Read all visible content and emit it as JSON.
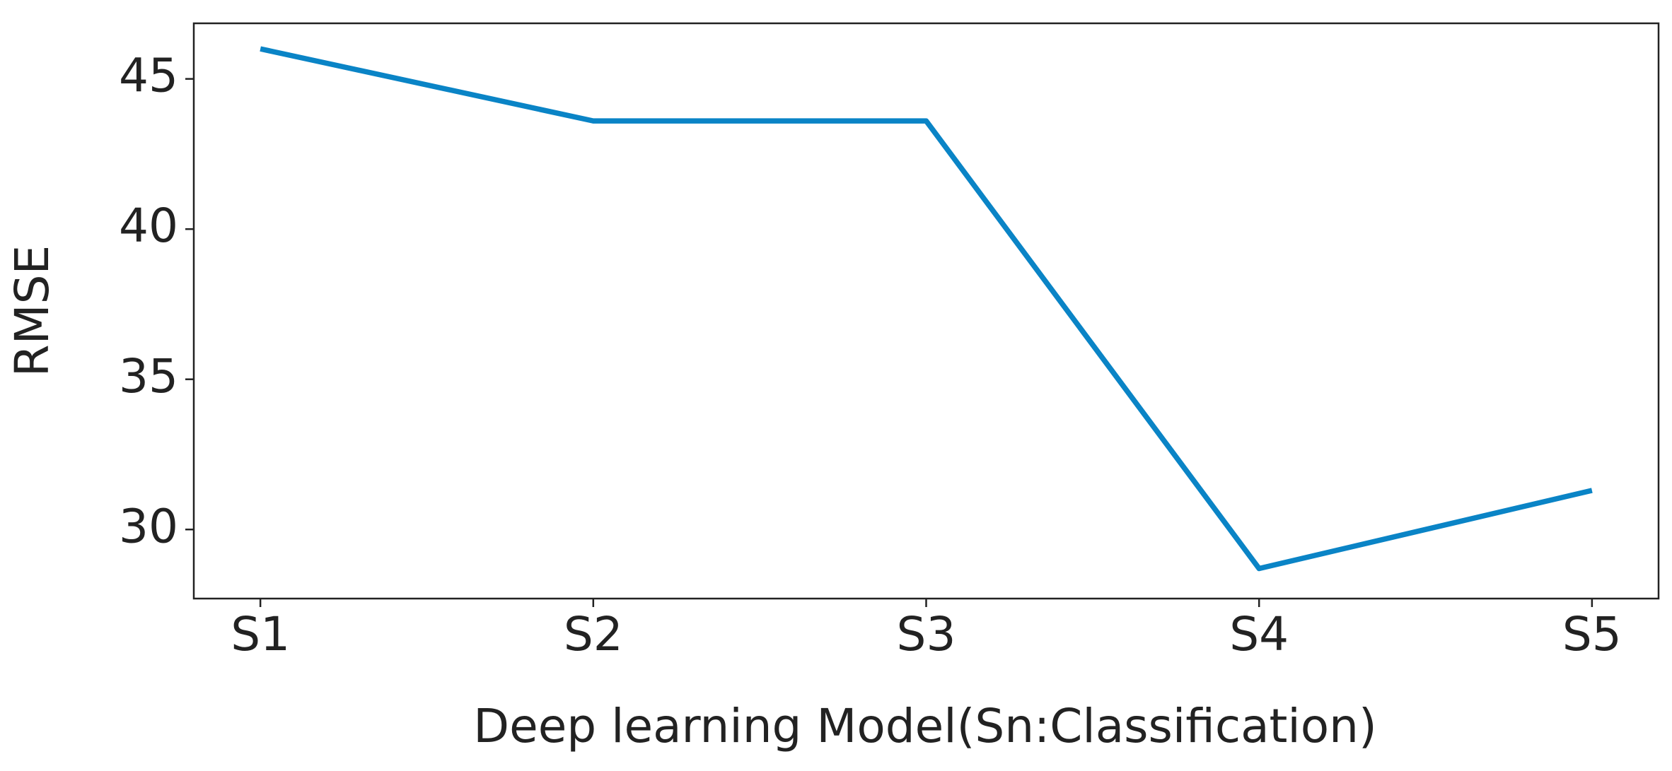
{
  "chart_data": {
    "type": "line",
    "x_label": "Deep learning Model(Sn:Classification)",
    "y_label": "RMSE",
    "categories": [
      "S1",
      "S2",
      "S3",
      "S4",
      "S5"
    ],
    "series": [
      {
        "name": "RMSE",
        "color": "#0a84c6",
        "values": [
          46.0,
          43.6,
          43.6,
          28.7,
          31.3
        ]
      }
    ],
    "ylim": [
      27.7,
      46.85
    ],
    "yticks": [
      30,
      35,
      40,
      45
    ]
  }
}
